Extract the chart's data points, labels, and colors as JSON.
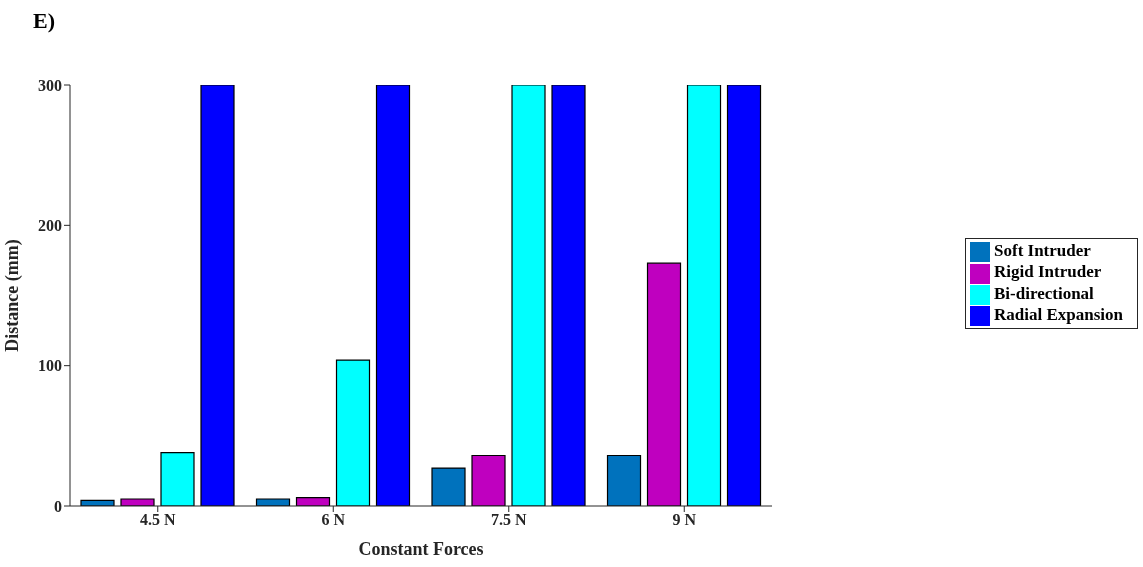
{
  "chart_data": {
    "type": "bar",
    "title": "E)",
    "xlabel": "Constant Forces",
    "ylabel": "Distance (mm)",
    "categories": [
      "4.5 N",
      "6 N",
      "7.5 N",
      "9 N"
    ],
    "series": [
      {
        "name": "Soft Intruder",
        "color": "#0072bd",
        "values": [
          4,
          5,
          27,
          36
        ]
      },
      {
        "name": "Rigid Intruder",
        "color": "#bf00bf",
        "values": [
          5,
          6,
          36,
          173
        ]
      },
      {
        "name": "Bi-directional",
        "color": "#00ffff",
        "values": [
          38,
          104,
          300,
          300
        ]
      },
      {
        "name": "Radial Expansion",
        "color": "#0000ff",
        "values": [
          300,
          300,
          300,
          300
        ]
      }
    ],
    "ylim": [
      0,
      300
    ],
    "yticks": [
      0,
      100,
      200,
      300
    ],
    "grid": false,
    "legend": "right"
  }
}
